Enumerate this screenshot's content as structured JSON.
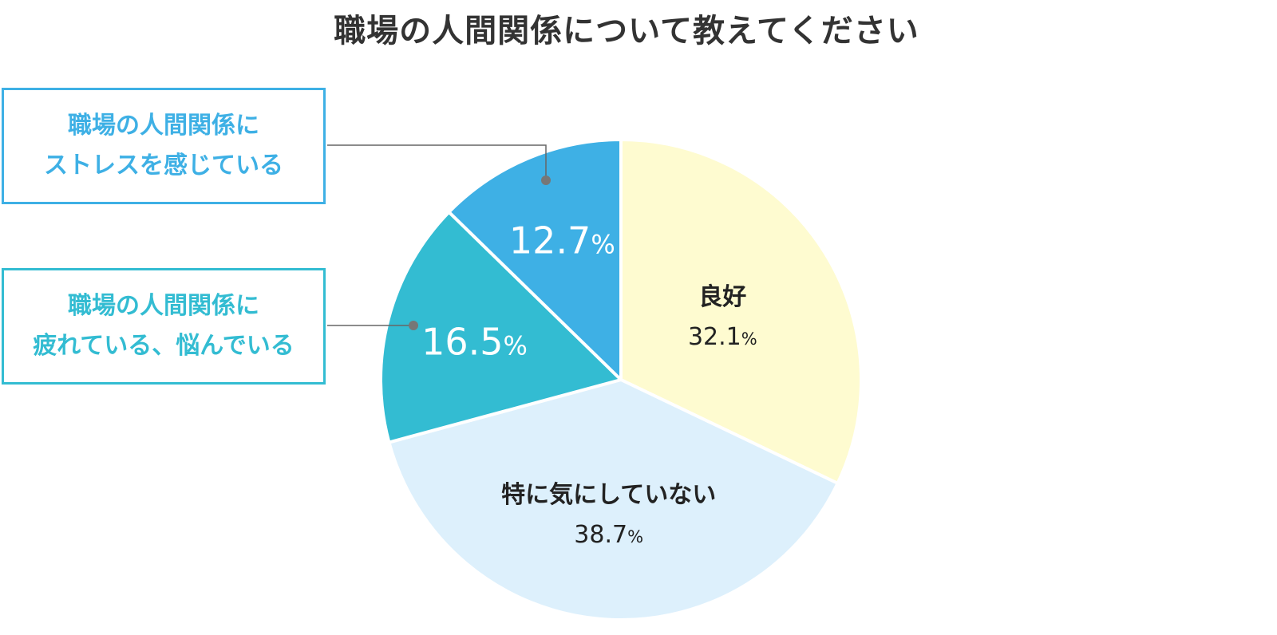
{
  "title": "職場の人間関係について教えてください",
  "chart_data": {
    "type": "pie",
    "title": "職場の人間関係について教えてください",
    "slices": [
      {
        "label": "良好",
        "value": 32.1,
        "value_text": "32.1",
        "color": "#FEFBD0",
        "label_color": "#222222"
      },
      {
        "label": "特に気にしていない",
        "value": 38.7,
        "value_text": "38.7",
        "color": "#DDF0FC",
        "label_color": "#222222"
      },
      {
        "label": "職場の人間関係に疲れている、悩んでいる",
        "value": 16.5,
        "value_text": "16.5",
        "color": "#33BCD2",
        "label_color": "#ffffff"
      },
      {
        "label": "職場の人間関係にストレスを感じている",
        "value": 12.7,
        "value_text": "12.7",
        "color": "#3EB0E5",
        "label_color": "#ffffff"
      }
    ],
    "unit": "%",
    "start": "12 o'clock",
    "direction": "clockwise"
  },
  "callouts": {
    "stress": {
      "line1": "職場の人間関係に",
      "line2": "ストレスを感じている",
      "color": "#3EB0E5"
    },
    "tired": {
      "line1": "職場の人間関係に",
      "line2": "疲れている、悩んでいる",
      "color": "#33BCD2"
    }
  },
  "colors": {
    "leader_line": "#666666",
    "leader_dot": "#777777",
    "slice_border": "#ffffff",
    "title": "#333333"
  }
}
